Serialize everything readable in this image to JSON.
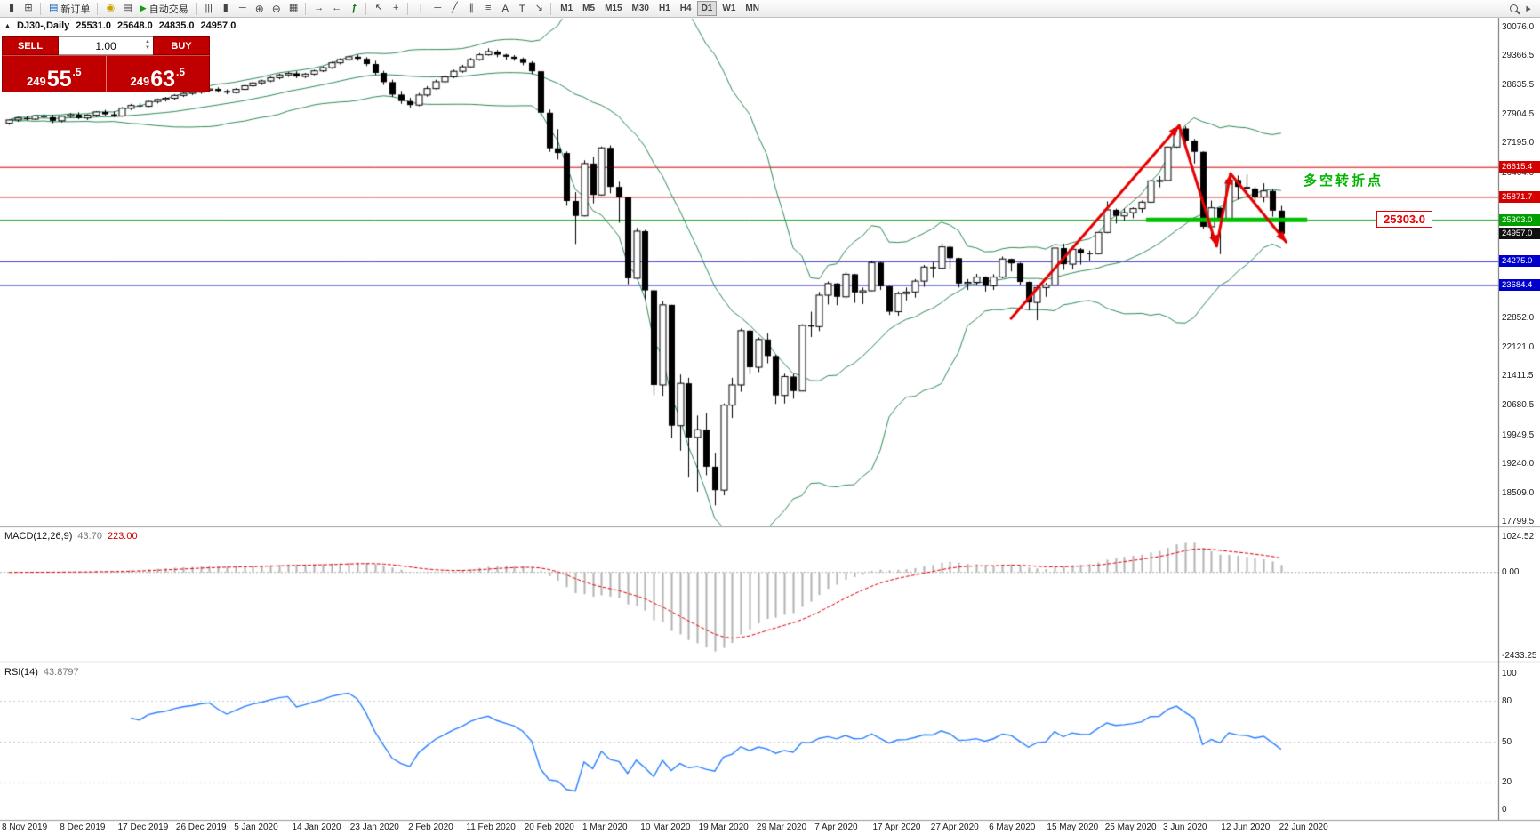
{
  "toolbar": {
    "buttons": [
      {
        "name": "new-chart",
        "glyph": "candles"
      },
      {
        "name": "chart-profiles",
        "glyph": "grid"
      },
      {
        "sep": true
      },
      {
        "name": "new-order",
        "glyph": "order",
        "label": "新订单"
      },
      {
        "sep": true
      },
      {
        "name": "market-watch",
        "glyph": "coins"
      },
      {
        "name": "data-window",
        "glyph": "win"
      },
      {
        "name": "autotrade",
        "glyph": "play",
        "label": "自动交易"
      },
      {
        "sep": true
      },
      {
        "name": "bar-chart",
        "glyph": "bars"
      },
      {
        "name": "candlestick-chart",
        "glyph": "candles"
      },
      {
        "name": "line-chart",
        "glyph": "linech"
      },
      {
        "name": "zoom-in",
        "glyph": "zoomin"
      },
      {
        "name": "zoom-out",
        "glyph": "zoomout"
      },
      {
        "name": "tile-windows",
        "glyph": "tiles"
      },
      {
        "sep": true
      },
      {
        "name": "auto-scroll",
        "glyph": "autoscroll"
      },
      {
        "name": "chart-shift",
        "glyph": "shift"
      },
      {
        "name": "indicators",
        "glyph": "indicators"
      },
      {
        "sep": true
      },
      {
        "name": "cursor",
        "glyph": "cursor"
      },
      {
        "name": "crosshair",
        "glyph": "cross"
      },
      {
        "sep": true
      },
      {
        "name": "vertical-line",
        "glyph": "vline"
      },
      {
        "name": "horizontal-line",
        "glyph": "hline"
      },
      {
        "name": "trendline",
        "glyph": "tline"
      },
      {
        "name": "equidistant-channel",
        "glyph": "channel"
      },
      {
        "name": "fibonacci",
        "glyph": "fib"
      },
      {
        "name": "text",
        "label": "A"
      },
      {
        "name": "text-label",
        "label": "T"
      },
      {
        "name": "arrows",
        "glyph": "arrow"
      },
      {
        "sep": true
      }
    ],
    "timeframes": [
      "M1",
      "M5",
      "M15",
      "M30",
      "H1",
      "H4",
      "D1",
      "W1",
      "MN"
    ],
    "active_timeframe": "D1"
  },
  "header": {
    "symbol_period": "DJ30-,Daily",
    "open": "25531.0",
    "high": "25648.0",
    "low": "24835.0",
    "close": "24957.0"
  },
  "one_click": {
    "sell_label": "SELL",
    "buy_label": "BUY",
    "volume": "1.00",
    "sell_pre": "249",
    "sell_big": "55",
    "sell_sup": ".5",
    "buy_pre": "249",
    "buy_big": "63",
    "buy_sup": ".5"
  },
  "indicators": {
    "macd_name": "MACD(12,26,9)",
    "macd_main": "43.70",
    "macd_signal": "223.00",
    "rsi_name": "RSI(14)",
    "rsi_value": "43.8797"
  },
  "annotations": {
    "level_label": "25303.0",
    "turning_point_text": "多空转折点",
    "hlines": [
      {
        "price": 26615.4,
        "color": "#d40000"
      },
      {
        "price": 25871.7,
        "color": "#d40000"
      },
      {
        "price": 25303.0,
        "color": "#00a000"
      },
      {
        "price": 24275.0,
        "color": "#0000cd"
      },
      {
        "price": 23684.4,
        "color": "#0000cd"
      }
    ],
    "price_tags": [
      {
        "text": "26615.4",
        "price": 26615.4,
        "color": "#d40000"
      },
      {
        "text": "25871.7",
        "price": 25871.7,
        "color": "#d40000"
      },
      {
        "text": "25303.0",
        "price": 25303.0,
        "color": "#00a000"
      },
      {
        "text": "24957.0",
        "price": 24957.0,
        "color": "#101010"
      },
      {
        "text": "24275.0",
        "price": 24275.0,
        "color": "#0000cd"
      },
      {
        "text": "23684.4",
        "price": 23684.4,
        "color": "#0000cd"
      }
    ],
    "green_segment": {
      "price": 25303.0,
      "from_bar": 130.5,
      "to_bar": 149,
      "color": "#00c000",
      "width": 5
    },
    "zigzag": {
      "color": "#e60000",
      "width": 3,
      "points": [
        [
          115,
          22850
        ],
        [
          134.3,
          27640
        ],
        [
          138.6,
          24650
        ],
        [
          140.2,
          26450
        ],
        [
          146.6,
          24750
        ]
      ]
    }
  },
  "axes": {
    "price_labels": [
      "30076.0",
      "29366.5",
      "28635.5",
      "27904.5",
      "27195.0",
      "26464.0",
      "22852.0",
      "22121.0",
      "21411.5",
      "20680.5",
      "19949.5",
      "19240.0",
      "18509.0",
      "17799.5"
    ],
    "macd_labels": [
      {
        "text": "1024.52",
        "value": 1024.52
      },
      {
        "text": "0.00",
        "value": 0
      },
      {
        "text": "-2433.25",
        "value": -2433.25
      }
    ],
    "rsi_labels": [
      {
        "text": "100",
        "value": 100
      },
      {
        "text": "80",
        "value": 80
      },
      {
        "text": "50",
        "value": 50
      },
      {
        "text": "20",
        "value": 20
      },
      {
        "text": "0",
        "value": 0
      }
    ],
    "dates": [
      "8 Nov 2019",
      "8 Dec 2019",
      "17 Dec 2019",
      "26 Dec 2019",
      "5 Jan 2020",
      "14 Jan 2020",
      "23 Jan 2020",
      "2 Feb 2020",
      "11 Feb 2020",
      "20 Feb 2020",
      "1 Mar 2020",
      "10 Mar 2020",
      "19 Mar 2020",
      "29 Mar 2020",
      "7 Apr 2020",
      "17 Apr 2020",
      "27 Apr 2020",
      "6 May 2020",
      "15 May 2020",
      "25 May 2020",
      "3 Jun 2020",
      "12 Jun 2020",
      "22 Jun 2020"
    ]
  },
  "chart_data": {
    "type": "candlestick",
    "symbol": "DJ30-",
    "timeframe": "Daily",
    "current_ohlc": [
      25531.0,
      25648.0,
      24835.0,
      24957.0
    ],
    "colors": {
      "up_fill": "#ffffff",
      "down_fill": "#000000",
      "outline": "#000000"
    },
    "overlays": {
      "bollinger": {
        "period": 20,
        "deviation": 2,
        "color": "#2e8b57"
      }
    },
    "subcharts": [
      {
        "type": "macd",
        "params": "12,26,9",
        "main": 43.7,
        "signal": 223.0,
        "range": [
          -2433.25,
          1024.52
        ],
        "colors": {
          "histogram": "#b3b3b3",
          "signal": "#dd0000"
        }
      },
      {
        "type": "rsi",
        "params": "14",
        "value": 43.8797,
        "range": [
          0,
          100
        ],
        "levels": [
          80,
          50,
          20
        ],
        "color": "#2a7fff"
      }
    ],
    "candles": [
      [
        27700,
        27790,
        27660,
        27780
      ],
      [
        27780,
        27850,
        27740,
        27830
      ],
      [
        27830,
        27870,
        27770,
        27800
      ],
      [
        27800,
        27895,
        27780,
        27880
      ],
      [
        27880,
        27930,
        27820,
        27850
      ],
      [
        27850,
        27900,
        27700,
        27760
      ],
      [
        27760,
        27890,
        27720,
        27870
      ],
      [
        27870,
        27950,
        27830,
        27910
      ],
      [
        27910,
        27970,
        27800,
        27830
      ],
      [
        27830,
        27920,
        27780,
        27900
      ],
      [
        27900,
        28000,
        27860,
        27980
      ],
      [
        27980,
        28030,
        27890,
        27920
      ],
      [
        27920,
        27990,
        27850,
        27880
      ],
      [
        27880,
        28100,
        27860,
        28070
      ],
      [
        28070,
        28180,
        28030,
        28140
      ],
      [
        28140,
        28200,
        28080,
        28120
      ],
      [
        28120,
        28260,
        28100,
        28240
      ],
      [
        28240,
        28310,
        28190,
        28290
      ],
      [
        28290,
        28350,
        28240,
        28320
      ],
      [
        28320,
        28420,
        28280,
        28390
      ],
      [
        28390,
        28480,
        28350,
        28440
      ],
      [
        28440,
        28510,
        28400,
        28470
      ],
      [
        28470,
        28550,
        28430,
        28520
      ],
      [
        28520,
        28580,
        28480,
        28550
      ],
      [
        28550,
        28590,
        28460,
        28500
      ],
      [
        28500,
        28540,
        28420,
        28460
      ],
      [
        28460,
        28570,
        28440,
        28540
      ],
      [
        28540,
        28660,
        28520,
        28630
      ],
      [
        28630,
        28730,
        28590,
        28700
      ],
      [
        28700,
        28780,
        28650,
        28750
      ],
      [
        28750,
        28860,
        28720,
        28830
      ],
      [
        28830,
        28930,
        28790,
        28900
      ],
      [
        28900,
        28970,
        28850,
        28940
      ],
      [
        28940,
        28990,
        28820,
        28860
      ],
      [
        28860,
        28950,
        28820,
        28920
      ],
      [
        28920,
        29030,
        28890,
        29000
      ],
      [
        29000,
        29110,
        28970,
        29080
      ],
      [
        29080,
        29230,
        29050,
        29200
      ],
      [
        29200,
        29310,
        29160,
        29280
      ],
      [
        29280,
        29390,
        29240,
        29350
      ],
      [
        29350,
        29400,
        29250,
        29300
      ],
      [
        29300,
        29340,
        29120,
        29170
      ],
      [
        29170,
        29250,
        28900,
        28950
      ],
      [
        28950,
        29000,
        28650,
        28720
      ],
      [
        28720,
        28780,
        28350,
        28410
      ],
      [
        28410,
        28500,
        28180,
        28250
      ],
      [
        28250,
        28330,
        28080,
        28150
      ],
      [
        28150,
        28450,
        28120,
        28400
      ],
      [
        28400,
        28620,
        28360,
        28560
      ],
      [
        28560,
        28780,
        28540,
        28730
      ],
      [
        28730,
        28900,
        28700,
        28850
      ],
      [
        28850,
        29030,
        28820,
        28990
      ],
      [
        28990,
        29150,
        28950,
        29100
      ],
      [
        29100,
        29320,
        29080,
        29280
      ],
      [
        29280,
        29440,
        29250,
        29400
      ],
      [
        29400,
        29560,
        29380,
        29480
      ],
      [
        29480,
        29520,
        29340,
        29400
      ],
      [
        29400,
        29420,
        29280,
        29350
      ],
      [
        29350,
        29390,
        29250,
        29300
      ],
      [
        29300,
        29330,
        29140,
        29200
      ],
      [
        29200,
        29240,
        28920,
        28990
      ],
      [
        28990,
        29000,
        27880,
        27960
      ],
      [
        27960,
        28040,
        26990,
        27080
      ],
      [
        27080,
        27550,
        26800,
        26960
      ],
      [
        26960,
        27000,
        25650,
        25770
      ],
      [
        25770,
        25990,
        24700,
        25400
      ],
      [
        25400,
        26780,
        25390,
        26700
      ],
      [
        26700,
        26870,
        25710,
        25920
      ],
      [
        25920,
        27120,
        25900,
        27090
      ],
      [
        27090,
        27150,
        25960,
        26120
      ],
      [
        26120,
        26250,
        25230,
        25860
      ],
      [
        25860,
        25870,
        23700,
        23850
      ],
      [
        23850,
        25100,
        23840,
        25020
      ],
      [
        25020,
        25050,
        23330,
        23550
      ],
      [
        23550,
        23560,
        20950,
        21200
      ],
      [
        21200,
        23280,
        20930,
        23190
      ],
      [
        23190,
        23190,
        19880,
        20190
      ],
      [
        20190,
        21460,
        19570,
        21240
      ],
      [
        21240,
        21380,
        18920,
        19900
      ],
      [
        19900,
        20440,
        18550,
        20090
      ],
      [
        20090,
        20500,
        18960,
        19170
      ],
      [
        19170,
        19520,
        18210,
        18590
      ],
      [
        18590,
        20740,
        18460,
        20700
      ],
      [
        20700,
        21380,
        20380,
        21200
      ],
      [
        21200,
        22600,
        21030,
        22550
      ],
      [
        22550,
        22580,
        21470,
        21640
      ],
      [
        21640,
        22380,
        21520,
        22330
      ],
      [
        22330,
        22480,
        21740,
        21920
      ],
      [
        21920,
        21950,
        20730,
        20940
      ],
      [
        20940,
        21480,
        20740,
        21410
      ],
      [
        21410,
        21470,
        20860,
        21050
      ],
      [
        21050,
        22710,
        21050,
        22680
      ],
      [
        22680,
        23020,
        22390,
        22650
      ],
      [
        22650,
        23510,
        22540,
        23430
      ],
      [
        23430,
        23770,
        23200,
        23720
      ],
      [
        23720,
        23730,
        23180,
        23390
      ],
      [
        23390,
        24010,
        23360,
        23950
      ],
      [
        23950,
        23960,
        23240,
        23500
      ],
      [
        23500,
        23620,
        23210,
        23540
      ],
      [
        23540,
        24290,
        23530,
        24240
      ],
      [
        24240,
        24250,
        23560,
        23650
      ],
      [
        23650,
        23660,
        22940,
        23020
      ],
      [
        23020,
        23520,
        22920,
        23470
      ],
      [
        23470,
        23620,
        23300,
        23510
      ],
      [
        23510,
        23830,
        23370,
        23780
      ],
      [
        23780,
        24180,
        23640,
        24130
      ],
      [
        24130,
        24250,
        23860,
        24100
      ],
      [
        24100,
        24720,
        24060,
        24630
      ],
      [
        24630,
        24660,
        24080,
        24350
      ],
      [
        24350,
        24360,
        23620,
        23720
      ],
      [
        23720,
        23830,
        23560,
        23750
      ],
      [
        23750,
        23960,
        23680,
        23880
      ],
      [
        23880,
        23900,
        23520,
        23660
      ],
      [
        23660,
        23950,
        23560,
        23880
      ],
      [
        23880,
        24390,
        23850,
        24330
      ],
      [
        24330,
        24340,
        24020,
        24220
      ],
      [
        24220,
        24240,
        23670,
        23760
      ],
      [
        23760,
        23770,
        23060,
        23250
      ],
      [
        23250,
        23680,
        22810,
        23620
      ],
      [
        23620,
        23730,
        23390,
        23680
      ],
      [
        23680,
        24610,
        23680,
        24600
      ],
      [
        24600,
        24710,
        24060,
        24200
      ],
      [
        24200,
        24580,
        24070,
        24570
      ],
      [
        24570,
        24600,
        24190,
        24470
      ],
      [
        24470,
        24540,
        24290,
        24460
      ],
      [
        24460,
        25000,
        24440,
        24990
      ],
      [
        24990,
        25760,
        24970,
        25550
      ],
      [
        25550,
        25580,
        25210,
        25400
      ],
      [
        25400,
        25580,
        25280,
        25480
      ],
      [
        25480,
        25610,
        25340,
        25580
      ],
      [
        25580,
        25780,
        25480,
        25740
      ],
      [
        25740,
        26290,
        25720,
        26270
      ],
      [
        26270,
        26390,
        26110,
        26280
      ],
      [
        26280,
        27120,
        26280,
        27110
      ],
      [
        27110,
        27600,
        27090,
        27570
      ],
      [
        27570,
        27620,
        27150,
        27270
      ],
      [
        27270,
        27310,
        26700,
        26990
      ],
      [
        26990,
        27000,
        25080,
        25130
      ],
      [
        25130,
        25780,
        24840,
        25600
      ],
      [
        25600,
        25610,
        24450,
        25290
      ],
      [
        25290,
        26330,
        25260,
        26290
      ],
      [
        26290,
        26400,
        25810,
        26120
      ],
      [
        26120,
        26430,
        25930,
        26080
      ],
      [
        26080,
        26120,
        25620,
        25870
      ],
      [
        25870,
        26210,
        25740,
        26020
      ],
      [
        26020,
        26060,
        25380,
        25530
      ],
      [
        25531,
        25648,
        24835,
        24957
      ]
    ]
  }
}
